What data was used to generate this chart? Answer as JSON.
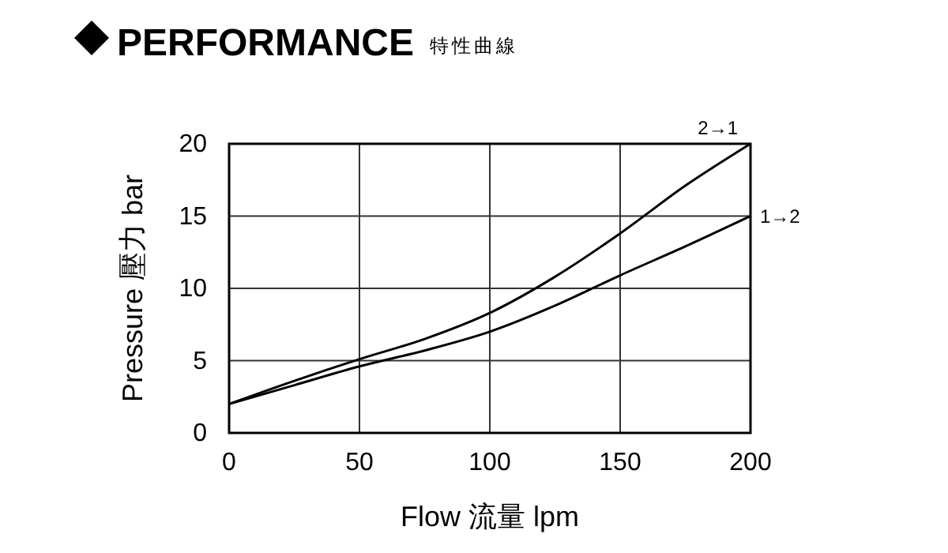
{
  "chart_data": {
    "type": "line",
    "title": "PERFORMANCE",
    "subtitle": "特性曲線",
    "xlabel": "Flow 流量 lpm",
    "ylabel": "Pressure 壓力 bar",
    "x": [
      0,
      25,
      50,
      75,
      100,
      125,
      150,
      175,
      200
    ],
    "series": [
      {
        "name": "2→1",
        "color": "#000000",
        "values": [
          2,
          3.6,
          5.1,
          6.5,
          8.3,
          10.8,
          13.8,
          17.1,
          20
        ]
      },
      {
        "name": "1→2",
        "color": "#000000",
        "values": [
          2,
          3.3,
          4.6,
          5.7,
          7.0,
          8.8,
          10.9,
          12.9,
          15
        ]
      }
    ],
    "xlim": [
      0,
      200
    ],
    "ylim": [
      0,
      20
    ],
    "xticks": [
      0,
      50,
      100,
      150,
      200
    ],
    "yticks": [
      0,
      5,
      10,
      15,
      20
    ],
    "grid": true,
    "marker": "none",
    "line_style": "solid"
  }
}
